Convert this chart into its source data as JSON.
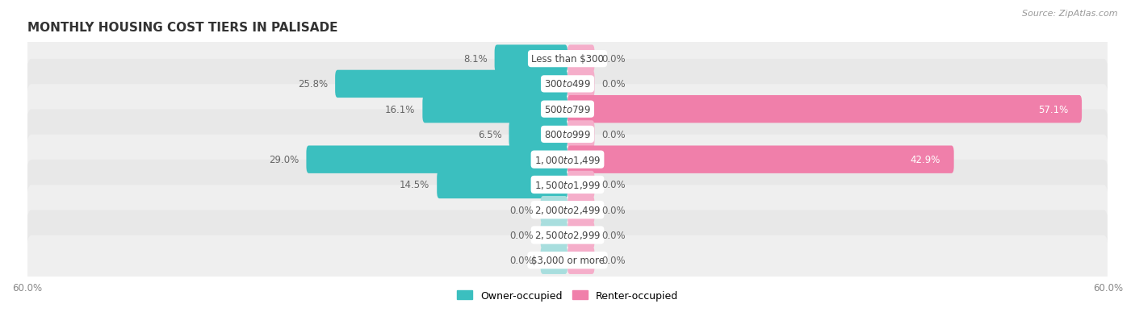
{
  "title": "MONTHLY HOUSING COST TIERS IN PALISADE",
  "source": "Source: ZipAtlas.com",
  "categories": [
    "Less than $300",
    "$300 to $499",
    "$500 to $799",
    "$800 to $999",
    "$1,000 to $1,499",
    "$1,500 to $1,999",
    "$2,000 to $2,499",
    "$2,500 to $2,999",
    "$3,000 or more"
  ],
  "owner_values": [
    8.1,
    25.8,
    16.1,
    6.5,
    29.0,
    14.5,
    0.0,
    0.0,
    0.0
  ],
  "renter_values": [
    0.0,
    0.0,
    57.1,
    0.0,
    42.9,
    0.0,
    0.0,
    0.0,
    0.0
  ],
  "owner_color": "#3BBFBF",
  "renter_color": "#F07FAA",
  "owner_color_zero": "#A8DEDE",
  "renter_color_zero": "#F5AECA",
  "row_bg_even": "#EFEFEF",
  "row_bg_odd": "#E8E8E8",
  "max_value": 60.0,
  "zero_stub": 3.0,
  "legend_owner": "Owner-occupied",
  "legend_renter": "Renter-occupied",
  "title_fontsize": 11,
  "source_fontsize": 8,
  "bar_label_fontsize": 8.5,
  "category_fontsize": 8.5,
  "axis_tick_fontsize": 8.5
}
